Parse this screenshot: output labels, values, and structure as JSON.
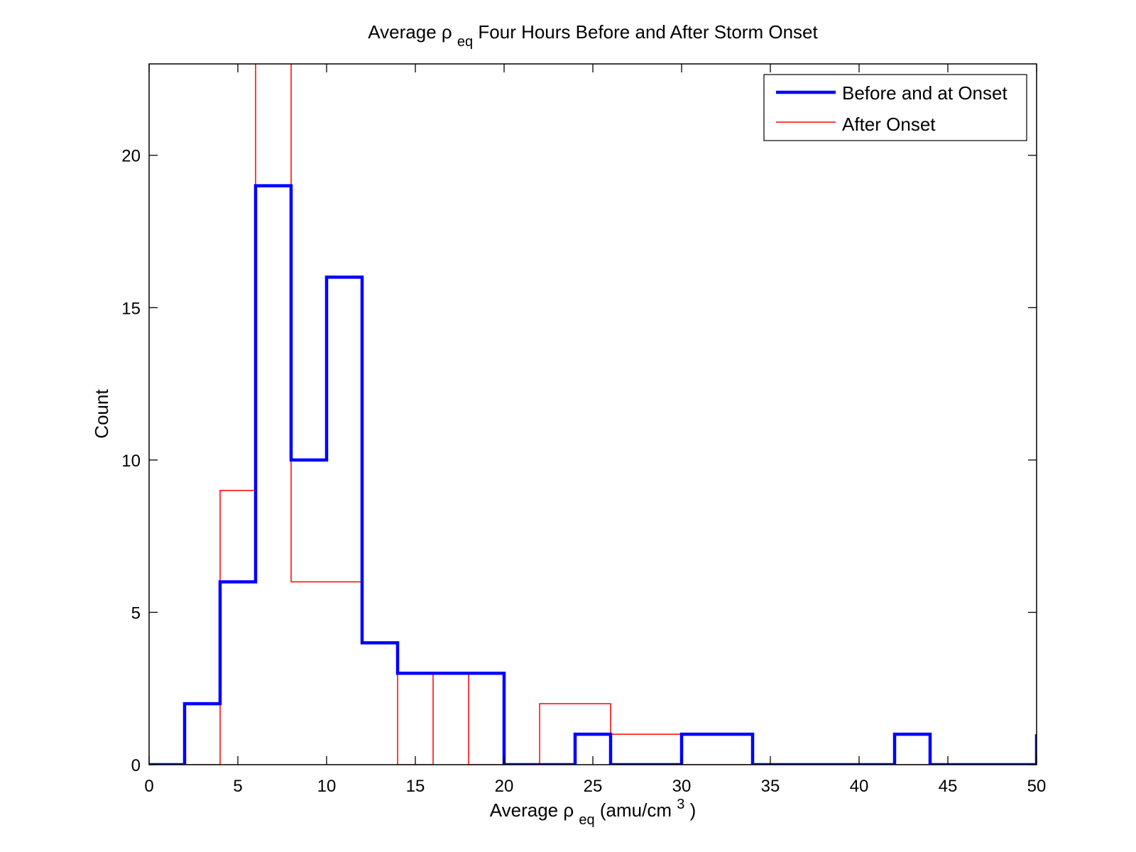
{
  "chart_data": {
    "type": "histogram",
    "title": {
      "prefix": "Average ρ",
      "subscript": "eq",
      "suffix": " Four Hours Before and After Storm Onset"
    },
    "xlabel": {
      "prefix": "Average ρ",
      "subscript": "eq",
      "middle": " (amu/cm",
      "superscript": "3",
      "suffix": ")"
    },
    "ylabel": "Count",
    "xlim": [
      0,
      50
    ],
    "ylim": [
      0,
      23
    ],
    "xticks": [
      0,
      5,
      10,
      15,
      20,
      25,
      30,
      35,
      40,
      45,
      50
    ],
    "yticks": [
      0,
      5,
      10,
      15,
      20
    ],
    "grid": false,
    "legend_position": "top-right",
    "bin_edges": [
      0,
      2,
      4,
      6,
      8,
      10,
      12,
      14,
      16,
      18,
      20,
      22,
      24,
      26,
      28,
      30,
      32,
      34,
      36,
      38,
      40,
      42,
      44,
      46,
      48,
      50
    ],
    "series": [
      {
        "name": "Before and at Onset",
        "color": "#0000ff",
        "line_style": "thick",
        "values": [
          0,
          2,
          6,
          19,
          10,
          16,
          4,
          3,
          3,
          3,
          0,
          0,
          1,
          0,
          0,
          1,
          1,
          0,
          0,
          0,
          0,
          1,
          0,
          0,
          0
        ],
        "final_value": 1
      },
      {
        "name": "After Onset",
        "color": "#ff0000",
        "line_style": "thin",
        "values": [
          0,
          0,
          9,
          25,
          6,
          6,
          4,
          0,
          3,
          0,
          0,
          2,
          2,
          1,
          1,
          0,
          0,
          0,
          0,
          0,
          0,
          0,
          0,
          0,
          0
        ],
        "final_value": 0
      }
    ]
  }
}
